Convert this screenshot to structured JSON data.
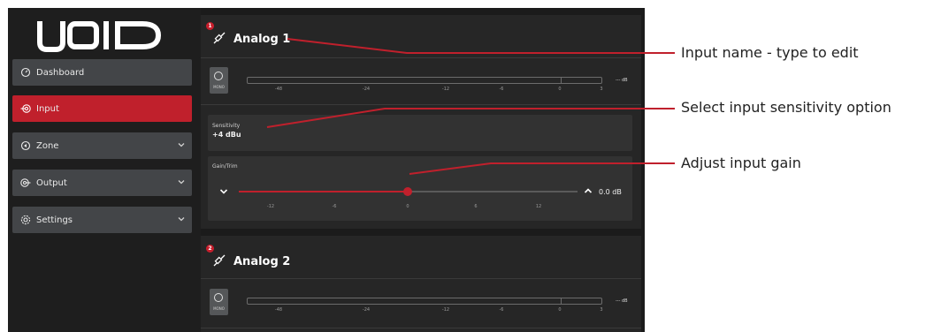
{
  "sidebar": {
    "logo_text": "VOID",
    "items": [
      {
        "label": "Dashboard",
        "icon": "gauge-icon",
        "active": false,
        "has_chevron": false
      },
      {
        "label": "Input",
        "icon": "input-icon",
        "active": true,
        "has_chevron": false
      },
      {
        "label": "Zone",
        "icon": "zone-icon",
        "active": false,
        "has_chevron": true
      },
      {
        "label": "Output",
        "icon": "output-icon",
        "active": false,
        "has_chevron": true
      },
      {
        "label": "Settings",
        "icon": "gear-icon",
        "active": false,
        "has_chevron": true
      }
    ]
  },
  "inputs": [
    {
      "badge": "1",
      "name": "Analog 1",
      "mono_label": "MONO",
      "meter_ticks": [
        "-48",
        "-24",
        "-12",
        "-6",
        "0",
        "3"
      ],
      "meter_db": "--- dB",
      "sensitivity_label": "Sensitivity",
      "sensitivity_value": "+4 dBu",
      "gain_label": "Gain/Trim",
      "gain_value": "0.0 dB",
      "gain_ticks": [
        "-12",
        "-6",
        "0",
        "6",
        "12"
      ],
      "gain_level_db": 0
    },
    {
      "badge": "2",
      "name": "Analog 2",
      "mono_label": "MONO",
      "meter_ticks": [
        "-48",
        "-24",
        "-12",
        "-6",
        "0",
        "3"
      ],
      "meter_db": "--- dB"
    }
  ],
  "annotations": {
    "name": "Input name - type to edit",
    "sensitivity": "Select input sensitivity option",
    "gain": "Adjust input gain"
  },
  "colors": {
    "accent": "#c0202c",
    "background": "#1b1b1b"
  }
}
